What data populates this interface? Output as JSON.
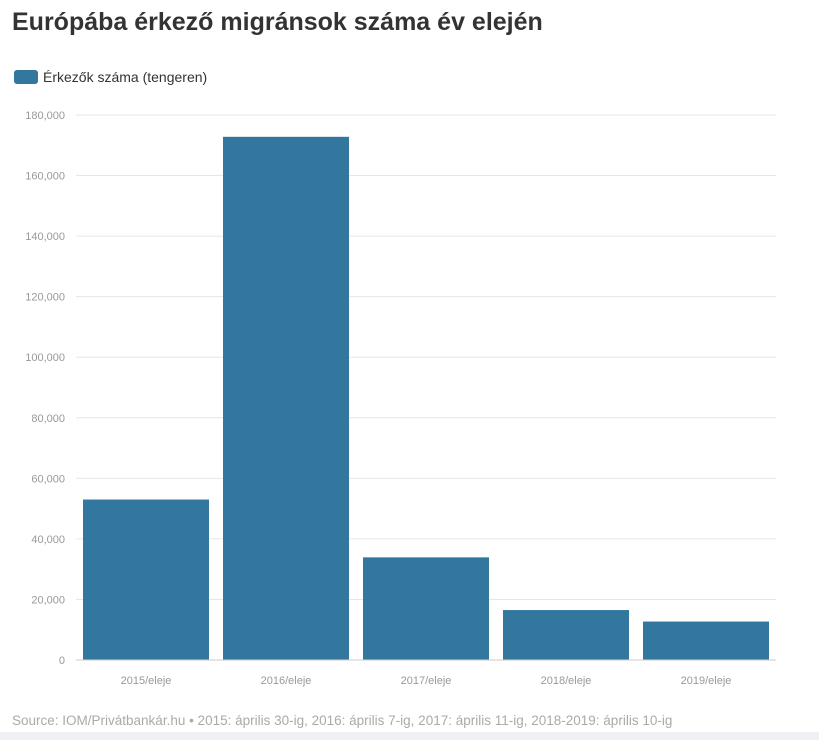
{
  "title": "Európába érkező migránsok száma év elején",
  "source": "Source: IOM/Privátbankár.hu • 2015: április 30-ig, 2016: április 7-ig, 2017: április 11-ig, 2018-2019: április 10-ig",
  "colors": {
    "bar": "#33779f",
    "grid": "#e6e6e6",
    "tick": "#999999"
  },
  "chart_data": {
    "type": "bar",
    "categories": [
      "2015/eleje",
      "2016/eleje",
      "2017/eleje",
      "2018/eleje",
      "2019/eleje"
    ],
    "series": [
      {
        "name": "Érkezők száma (tengeren)",
        "values": [
          53000,
          172800,
          33900,
          16500,
          12700
        ]
      }
    ],
    "ylim": [
      0,
      180000
    ],
    "yticks": [
      0,
      20000,
      40000,
      60000,
      80000,
      100000,
      120000,
      140000,
      160000,
      180000
    ],
    "ytick_labels": [
      "0",
      "20,000",
      "40,000",
      "60,000",
      "80,000",
      "100,000",
      "120,000",
      "140,000",
      "160,000",
      "180,000"
    ],
    "grid": true,
    "legend": "top-left"
  }
}
